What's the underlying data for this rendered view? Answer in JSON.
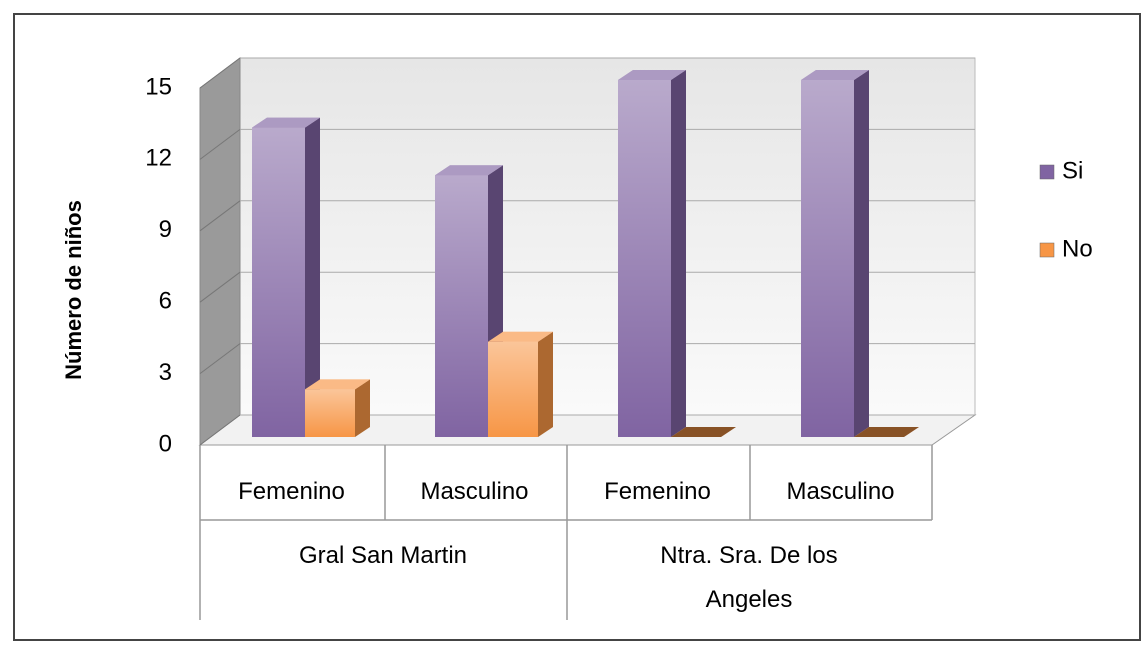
{
  "chart_data": {
    "type": "bar3d",
    "y_label": "Número de niños",
    "categories": [
      "Femenino",
      "Masculino",
      "Femenino",
      "Masculino"
    ],
    "groups": [
      {
        "label": "Gral San Martin",
        "span": [
          0,
          1
        ]
      },
      {
        "label": "Ntra. Sra. De los Angeles",
        "span": [
          2,
          3
        ]
      }
    ],
    "series": [
      {
        "name": "Si",
        "color": "#8064a2",
        "values": [
          13,
          11,
          15,
          15
        ]
      },
      {
        "name": "No",
        "color": "#f79646",
        "values": [
          2,
          4,
          0,
          0
        ]
      }
    ],
    "ylim": [
      0,
      15
    ],
    "yticks": [
      0,
      3,
      6,
      9,
      12,
      15
    ],
    "grid": true,
    "legend": "right"
  }
}
